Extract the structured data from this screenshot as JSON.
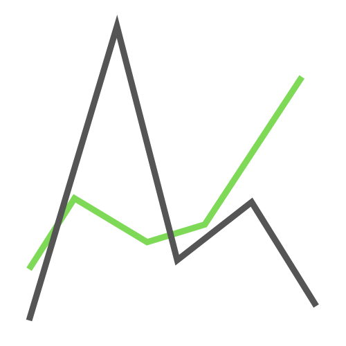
{
  "chart_data": {
    "type": "line",
    "title": "",
    "xlabel": "",
    "ylabel": "",
    "grid": false,
    "legend": "none",
    "series": [
      {
        "color": "#7ed957",
        "points": [
          {
            "x": 0.0,
            "y": 0.174
          },
          {
            "x": 0.158,
            "y": 0.415
          },
          {
            "x": 0.411,
            "y": 0.266
          },
          {
            "x": 0.612,
            "y": 0.326
          },
          {
            "x": 0.95,
            "y": 0.828
          }
        ]
      },
      {
        "color": "#555555",
        "points": [
          {
            "x": 0.0,
            "y": 0.0
          },
          {
            "x": 0.306,
            "y": 1.0
          },
          {
            "x": 0.516,
            "y": 0.205
          },
          {
            "x": 0.775,
            "y": 0.402
          },
          {
            "x": 1.0,
            "y": 0.049
          }
        ]
      }
    ],
    "xlim": [
      0,
      1
    ],
    "ylim": [
      0,
      1
    ]
  }
}
